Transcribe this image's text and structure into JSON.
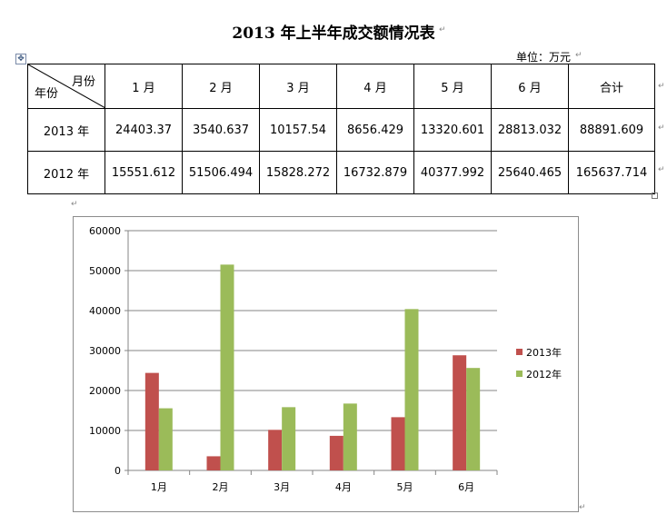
{
  "title": "2013 年上半年成交额情况表",
  "unit": "单位：万元",
  "table": {
    "corner_month": "月份",
    "corner_year": "年份",
    "headers": [
      "1 月",
      "2 月",
      "3 月",
      "4 月",
      "5 月",
      "6 月",
      "合计"
    ],
    "rows": [
      {
        "year": "2013 年",
        "values": [
          "24403.37",
          "3540.637",
          "10157.54",
          "8656.429",
          "13320.601",
          "28813.032",
          "88891.609"
        ]
      },
      {
        "year": "2012 年",
        "values": [
          "15551.612",
          "51506.494",
          "15828.272",
          "16732.879",
          "40377.992",
          "25640.465",
          "165637.714"
        ]
      }
    ]
  },
  "chart_data": {
    "type": "bar",
    "categories": [
      "1月",
      "2月",
      "3月",
      "4月",
      "5月",
      "6月"
    ],
    "series": [
      {
        "name": "2013年",
        "color": "#C0504D",
        "values": [
          24403.37,
          3540.637,
          10157.54,
          8656.429,
          13320.601,
          28813.032
        ]
      },
      {
        "name": "2012年",
        "color": "#9BBB59",
        "values": [
          15551.612,
          51506.494,
          15828.272,
          16732.879,
          40377.992,
          25640.465
        ]
      }
    ],
    "ylim": [
      0,
      60000
    ],
    "yticks": [
      "0",
      "10000",
      "20000",
      "30000",
      "40000",
      "50000",
      "60000"
    ],
    "grid": true,
    "legend": "right"
  }
}
